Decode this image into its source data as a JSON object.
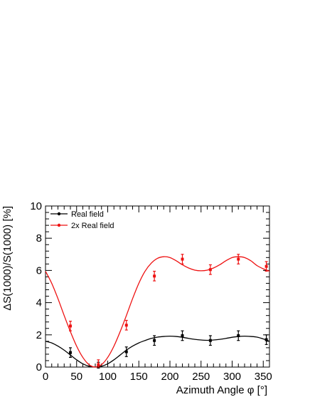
{
  "chart_data": {
    "type": "scatter",
    "xlabel": "Azimuth Angle φ [°]",
    "ylabel": "ΔS(1000)/S(1000) [%]",
    "xlim": [
      0,
      360
    ],
    "ylim": [
      0,
      10
    ],
    "x_ticks": [
      0,
      50,
      100,
      150,
      200,
      250,
      300,
      350
    ],
    "y_ticks": [
      0,
      2,
      4,
      6,
      8,
      10
    ],
    "legend_position": "top-left",
    "grid": false,
    "series": [
      {
        "name": "Real field",
        "color": "#000000",
        "x": [
          40,
          85,
          130,
          175,
          220,
          265,
          310,
          355
        ],
        "y": [
          0.9,
          0.0,
          0.95,
          1.65,
          1.95,
          1.65,
          1.95,
          1.7
        ],
        "err": [
          0.3,
          0.3,
          0.3,
          0.3,
          0.3,
          0.3,
          0.3,
          0.3
        ],
        "curve_x": [
          0,
          10,
          20,
          30,
          40,
          50,
          60,
          70,
          80,
          90,
          100,
          110,
          120,
          130,
          140,
          150,
          160,
          170,
          180,
          190,
          200,
          210,
          220,
          230,
          240,
          250,
          260,
          270,
          280,
          290,
          300,
          310,
          320,
          330,
          340,
          350,
          360
        ],
        "curve_y": [
          1.6,
          1.5,
          1.3,
          1.05,
          0.75,
          0.45,
          0.2,
          0.05,
          0.0,
          0.05,
          0.2,
          0.45,
          0.75,
          1.05,
          1.3,
          1.5,
          1.65,
          1.78,
          1.86,
          1.9,
          1.92,
          1.9,
          1.85,
          1.78,
          1.72,
          1.68,
          1.66,
          1.68,
          1.72,
          1.78,
          1.85,
          1.9,
          1.92,
          1.9,
          1.86,
          1.75,
          1.6
        ]
      },
      {
        "name": "2x Real field",
        "color": "#ee1111",
        "x": [
          40,
          85,
          130,
          175,
          220,
          265,
          310,
          355
        ],
        "y": [
          2.55,
          0.15,
          2.6,
          5.65,
          6.7,
          6.05,
          6.7,
          6.25
        ],
        "err": [
          0.3,
          0.3,
          0.3,
          0.3,
          0.3,
          0.3,
          0.3,
          0.3
        ],
        "curve_x": [
          0,
          10,
          20,
          30,
          40,
          50,
          60,
          70,
          80,
          90,
          100,
          110,
          120,
          130,
          140,
          150,
          160,
          170,
          180,
          190,
          200,
          210,
          220,
          230,
          240,
          250,
          260,
          270,
          280,
          290,
          300,
          310,
          320,
          330,
          340,
          350,
          360
        ],
        "curve_y": [
          5.95,
          5.2,
          4.25,
          3.2,
          2.2,
          1.3,
          0.6,
          0.15,
          0.0,
          0.15,
          0.6,
          1.3,
          2.2,
          3.2,
          4.25,
          5.2,
          5.95,
          6.45,
          6.75,
          6.85,
          6.8,
          6.6,
          6.35,
          6.15,
          6.02,
          5.98,
          6.02,
          6.15,
          6.35,
          6.6,
          6.8,
          6.85,
          6.8,
          6.6,
          6.3,
          6.1,
          5.95
        ]
      }
    ]
  }
}
